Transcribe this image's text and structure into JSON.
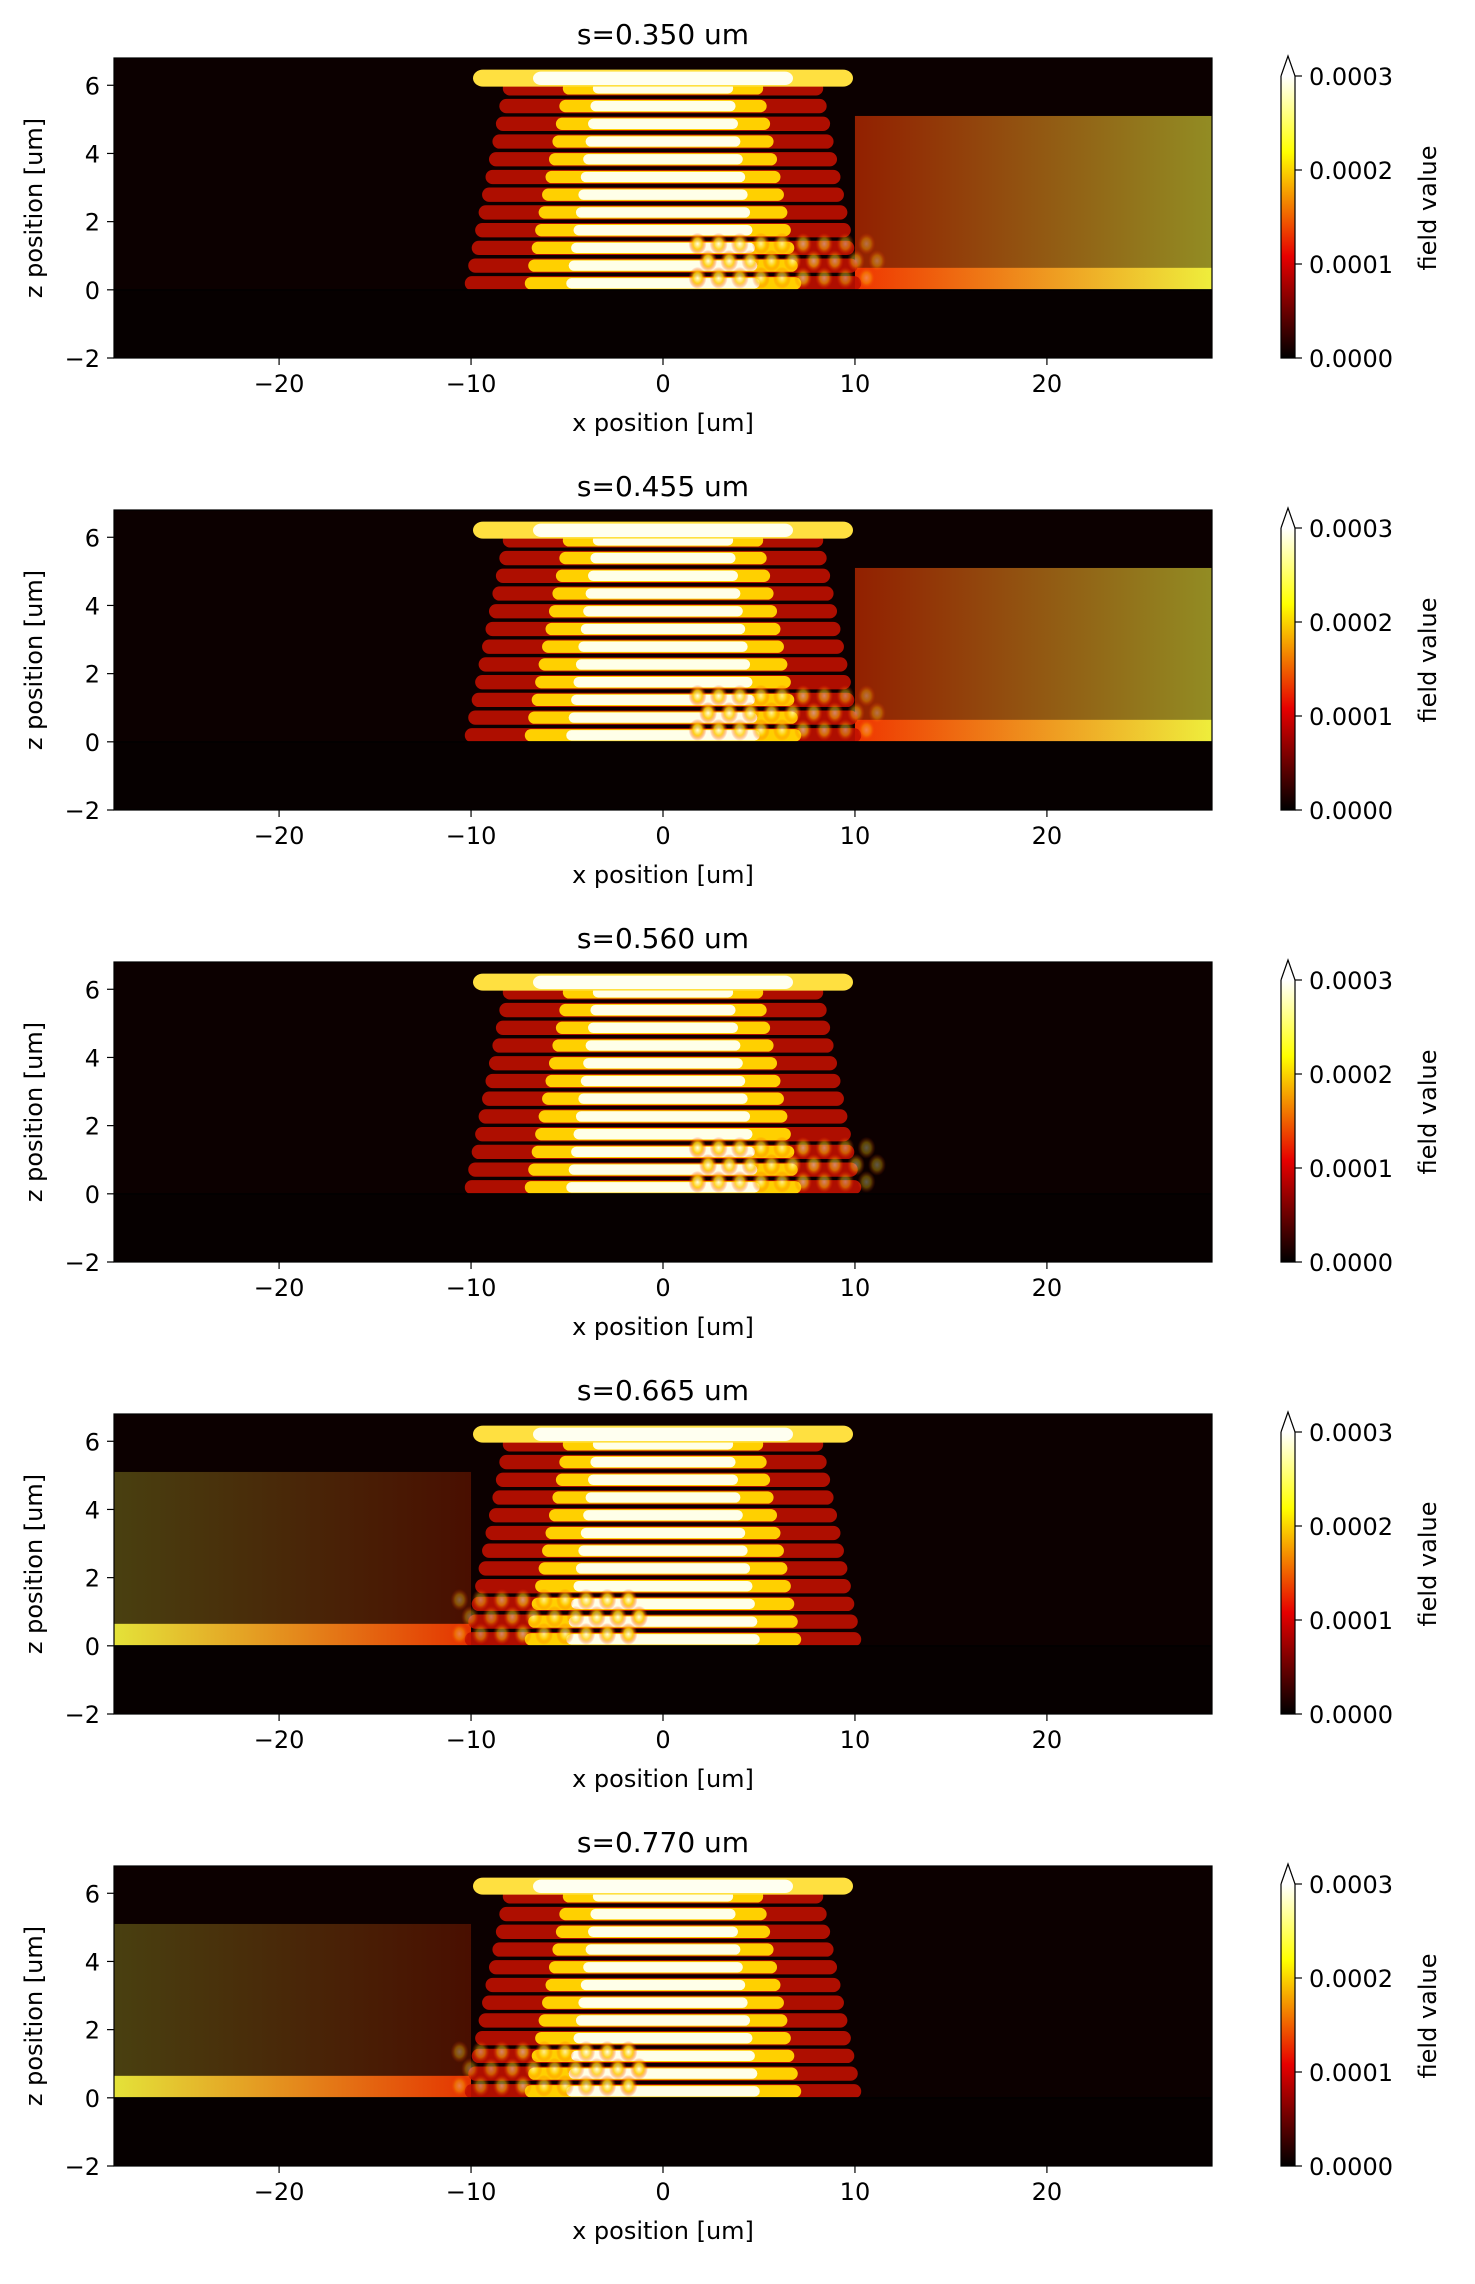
{
  "figure": {
    "colormap": "hot",
    "colorbar": {
      "label": "field value",
      "ticks": [
        "0.0000",
        "0.0001",
        "0.0002",
        "0.0003"
      ],
      "vmin": 0,
      "vmax": 0.0003,
      "extend": "max"
    }
  },
  "chart_data": [
    {
      "type": "heatmap",
      "title": "s=0.350 um",
      "xlabel": "x position [um]",
      "ylabel": "z position [um]",
      "xlim": [
        -28.6,
        28.6
      ],
      "ylim": [
        -2,
        6.8
      ],
      "xticks": [
        "−20",
        "−10",
        "0",
        "10",
        "20"
      ],
      "yticks": [
        "−2",
        "0",
        "2",
        "4",
        "6"
      ],
      "s_um": 0.35,
      "pattern": {
        "grating_left_um": -10,
        "grating_right_um": 10,
        "center_um": 0,
        "side_glow_extent_um": 28,
        "side_glow_direction": "right"
      }
    },
    {
      "type": "heatmap",
      "title": "s=0.455 um",
      "xlabel": "x position [um]",
      "ylabel": "z position [um]",
      "xlim": [
        -28.6,
        28.6
      ],
      "ylim": [
        -2,
        6.8
      ],
      "xticks": [
        "−20",
        "−10",
        "0",
        "10",
        "20"
      ],
      "yticks": [
        "−2",
        "0",
        "2",
        "4",
        "6"
      ],
      "s_um": 0.455,
      "pattern": {
        "grating_left_um": -10,
        "grating_right_um": 10,
        "center_um": 0,
        "side_glow_extent_um": 20,
        "side_glow_direction": "right"
      }
    },
    {
      "type": "heatmap",
      "title": "s=0.560 um",
      "xlabel": "x position [um]",
      "ylabel": "z position [um]",
      "xlim": [
        -28.6,
        28.6
      ],
      "ylim": [
        -2,
        6.8
      ],
      "xticks": [
        "−20",
        "−10",
        "0",
        "10",
        "20"
      ],
      "yticks": [
        "−2",
        "0",
        "2",
        "4",
        "6"
      ],
      "s_um": 0.56,
      "pattern": {
        "grating_left_um": -10,
        "grating_right_um": 10,
        "center_um": 0,
        "side_glow_extent_um": 0,
        "side_glow_direction": "both"
      }
    },
    {
      "type": "heatmap",
      "title": "s=0.665 um",
      "xlabel": "x position [um]",
      "ylabel": "z position [um]",
      "xlim": [
        -28.6,
        28.6
      ],
      "ylim": [
        -2,
        6.8
      ],
      "xticks": [
        "−20",
        "−10",
        "0",
        "10",
        "20"
      ],
      "yticks": [
        "−2",
        "0",
        "2",
        "4",
        "6"
      ],
      "s_um": 0.665,
      "pattern": {
        "grating_left_um": -10,
        "grating_right_um": 10,
        "center_um": 0,
        "side_glow_extent_um": 20,
        "side_glow_direction": "left"
      }
    },
    {
      "type": "heatmap",
      "title": "s=0.770 um",
      "xlabel": "x position [um]",
      "ylabel": "z position [um]",
      "xlim": [
        -28.6,
        28.6
      ],
      "ylim": [
        -2,
        6.8
      ],
      "xticks": [
        "−20",
        "−10",
        "0",
        "10",
        "20"
      ],
      "yticks": [
        "−2",
        "0",
        "2",
        "4",
        "6"
      ],
      "s_um": 0.77,
      "pattern": {
        "grating_left_um": -10,
        "grating_right_um": 10,
        "center_um": 0,
        "side_glow_extent_um": 28,
        "side_glow_direction": "left"
      }
    }
  ]
}
